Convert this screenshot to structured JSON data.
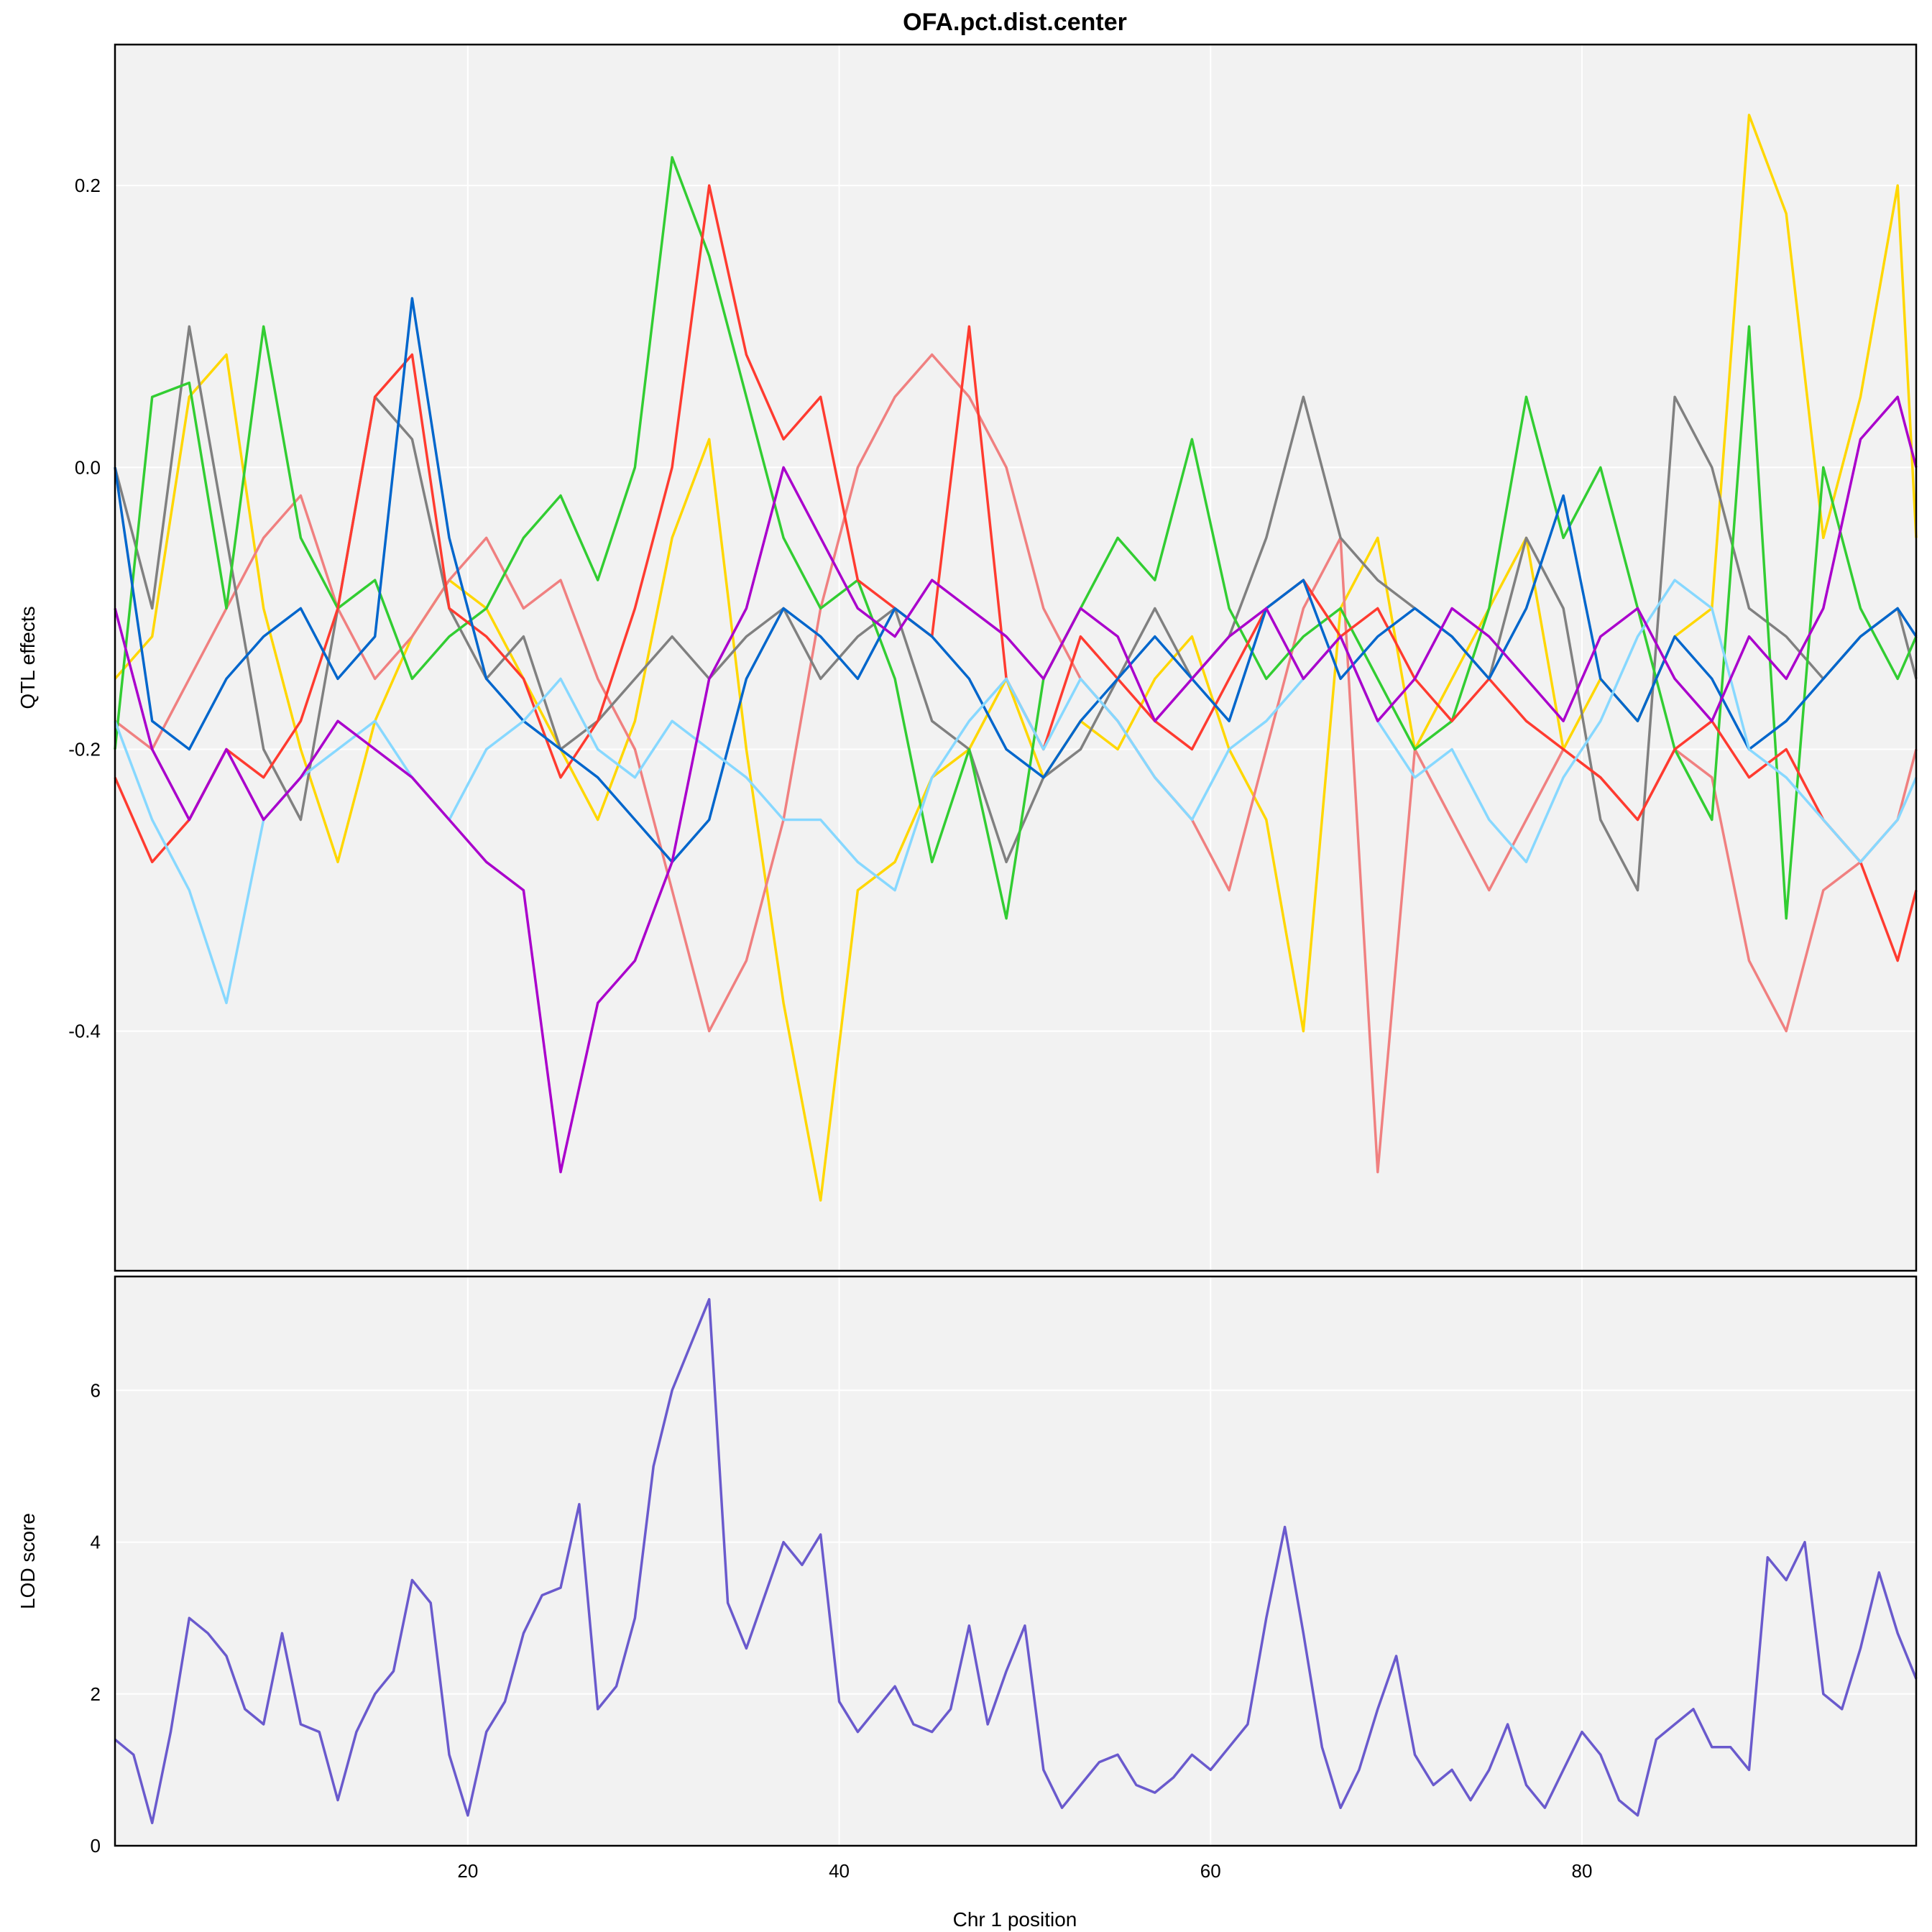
{
  "chart_data": [
    {
      "type": "line",
      "title": "OFA.pct.dist.center",
      "xlabel": "",
      "ylabel": "QTL effects",
      "xlim": [
        1,
        98
      ],
      "ylim": [
        -0.57,
        0.3
      ],
      "xticks": [
        20,
        40,
        60,
        80
      ],
      "yticks": [
        0.2,
        0.0,
        -0.2,
        -0.4
      ],
      "ytick_labels": [
        "0.2",
        "0.0",
        "-0.2",
        "-0.4"
      ],
      "grid": true,
      "background": "#f2f2f2",
      "x": [
        1,
        3,
        5,
        7,
        9,
        11,
        13,
        15,
        17,
        19,
        21,
        23,
        25,
        27,
        29,
        31,
        33,
        35,
        37,
        39,
        41,
        43,
        45,
        47,
        49,
        51,
        53,
        55,
        57,
        59,
        61,
        63,
        65,
        67,
        69,
        71,
        73,
        75,
        77,
        79,
        81,
        83,
        85,
        87,
        89,
        91,
        93,
        95,
        97,
        98
      ],
      "series": [
        {
          "color": "#ffd700",
          "values": [
            -0.15,
            -0.12,
            0.05,
            0.08,
            -0.1,
            -0.2,
            -0.28,
            -0.18,
            -0.12,
            -0.08,
            -0.1,
            -0.15,
            -0.2,
            -0.25,
            -0.18,
            -0.05,
            0.02,
            -0.2,
            -0.38,
            -0.52,
            -0.3,
            -0.28,
            -0.22,
            -0.2,
            -0.15,
            -0.22,
            -0.18,
            -0.2,
            -0.15,
            -0.12,
            -0.2,
            -0.25,
            -0.4,
            -0.1,
            -0.05,
            -0.2,
            -0.15,
            -0.1,
            -0.05,
            -0.2,
            -0.15,
            -0.18,
            -0.12,
            -0.1,
            0.25,
            0.18,
            -0.05,
            0.05,
            0.2,
            -0.05
          ]
        },
        {
          "color": "#f08080",
          "values": [
            -0.18,
            -0.2,
            -0.15,
            -0.1,
            -0.05,
            -0.02,
            -0.1,
            -0.15,
            -0.12,
            -0.08,
            -0.05,
            -0.1,
            -0.08,
            -0.15,
            -0.2,
            -0.3,
            -0.4,
            -0.35,
            -0.25,
            -0.1,
            0.0,
            0.05,
            0.08,
            0.05,
            0.0,
            -0.1,
            -0.15,
            -0.18,
            -0.22,
            -0.25,
            -0.3,
            -0.2,
            -0.1,
            -0.05,
            -0.5,
            -0.2,
            -0.25,
            -0.3,
            -0.25,
            -0.2,
            -0.22,
            -0.25,
            -0.2,
            -0.22,
            -0.35,
            -0.4,
            -0.3,
            -0.28,
            -0.25,
            -0.2
          ]
        },
        {
          "color": "#808080",
          "values": [
            0.0,
            -0.1,
            0.1,
            -0.05,
            -0.2,
            -0.25,
            -0.1,
            0.05,
            0.02,
            -0.1,
            -0.15,
            -0.12,
            -0.2,
            -0.18,
            -0.15,
            -0.12,
            -0.15,
            -0.12,
            -0.1,
            -0.15,
            -0.12,
            -0.1,
            -0.18,
            -0.2,
            -0.28,
            -0.22,
            -0.2,
            -0.15,
            -0.1,
            -0.15,
            -0.12,
            -0.05,
            0.05,
            -0.05,
            -0.08,
            -0.1,
            -0.12,
            -0.15,
            -0.05,
            -0.1,
            -0.25,
            -0.3,
            0.05,
            0.0,
            -0.1,
            -0.12,
            -0.15,
            -0.12,
            -0.1,
            -0.15
          ]
        },
        {
          "color": "#32cd32",
          "values": [
            -0.2,
            0.05,
            0.06,
            -0.1,
            0.1,
            -0.05,
            -0.1,
            -0.08,
            -0.15,
            -0.12,
            -0.1,
            -0.05,
            -0.02,
            -0.08,
            0.0,
            0.22,
            0.15,
            0.05,
            -0.05,
            -0.1,
            -0.08,
            -0.15,
            -0.28,
            -0.2,
            -0.32,
            -0.15,
            -0.1,
            -0.05,
            -0.08,
            0.02,
            -0.1,
            -0.15,
            -0.12,
            -0.1,
            -0.15,
            -0.2,
            -0.18,
            -0.1,
            0.05,
            -0.05,
            0.0,
            -0.1,
            -0.2,
            -0.25,
            0.1,
            -0.32,
            0.0,
            -0.1,
            -0.15,
            -0.12
          ]
        },
        {
          "color": "#ff3b30",
          "values": [
            -0.22,
            -0.28,
            -0.25,
            -0.2,
            -0.22,
            -0.18,
            -0.1,
            0.05,
            0.08,
            -0.1,
            -0.12,
            -0.15,
            -0.22,
            -0.18,
            -0.1,
            0.0,
            0.2,
            0.08,
            0.02,
            0.05,
            -0.08,
            -0.1,
            -0.12,
            0.1,
            -0.15,
            -0.2,
            -0.12,
            -0.15,
            -0.18,
            -0.2,
            -0.15,
            -0.1,
            -0.08,
            -0.12,
            -0.1,
            -0.15,
            -0.18,
            -0.15,
            -0.18,
            -0.2,
            -0.22,
            -0.25,
            -0.2,
            -0.18,
            -0.22,
            -0.2,
            -0.25,
            -0.28,
            -0.35,
            -0.3
          ]
        },
        {
          "color": "#0066cc",
          "values": [
            0.0,
            -0.18,
            -0.2,
            -0.15,
            -0.12,
            -0.1,
            -0.15,
            -0.12,
            0.12,
            -0.05,
            -0.15,
            -0.18,
            -0.2,
            -0.22,
            -0.25,
            -0.28,
            -0.25,
            -0.15,
            -0.1,
            -0.12,
            -0.15,
            -0.1,
            -0.12,
            -0.15,
            -0.2,
            -0.22,
            -0.18,
            -0.15,
            -0.12,
            -0.15,
            -0.18,
            -0.1,
            -0.08,
            -0.15,
            -0.12,
            -0.1,
            -0.12,
            -0.15,
            -0.1,
            -0.02,
            -0.15,
            -0.18,
            -0.12,
            -0.15,
            -0.2,
            -0.18,
            -0.15,
            -0.12,
            -0.1,
            -0.12
          ]
        },
        {
          "color": "#87d8ff",
          "values": [
            -0.18,
            -0.25,
            -0.3,
            -0.38,
            -0.25,
            -0.22,
            -0.2,
            -0.18,
            -0.22,
            -0.25,
            -0.2,
            -0.18,
            -0.15,
            -0.2,
            -0.22,
            -0.18,
            -0.2,
            -0.22,
            -0.25,
            -0.25,
            -0.28,
            -0.3,
            -0.22,
            -0.18,
            -0.15,
            -0.2,
            -0.15,
            -0.18,
            -0.22,
            -0.25,
            -0.2,
            -0.18,
            -0.15,
            -0.12,
            -0.18,
            -0.22,
            -0.2,
            -0.25,
            -0.28,
            -0.22,
            -0.18,
            -0.12,
            -0.08,
            -0.1,
            -0.2,
            -0.22,
            -0.25,
            -0.28,
            -0.25,
            -0.22
          ]
        },
        {
          "color": "#aa00cc",
          "values": [
            -0.1,
            -0.2,
            -0.25,
            -0.2,
            -0.25,
            -0.22,
            -0.18,
            -0.2,
            -0.22,
            -0.25,
            -0.28,
            -0.3,
            -0.5,
            -0.38,
            -0.35,
            -0.28,
            -0.15,
            -0.1,
            0.0,
            -0.05,
            -0.1,
            -0.12,
            -0.08,
            -0.1,
            -0.12,
            -0.15,
            -0.1,
            -0.12,
            -0.18,
            -0.15,
            -0.12,
            -0.1,
            -0.15,
            -0.12,
            -0.18,
            -0.15,
            -0.1,
            -0.12,
            -0.15,
            -0.18,
            -0.12,
            -0.1,
            -0.15,
            -0.18,
            -0.12,
            -0.15,
            -0.1,
            0.02,
            0.05,
            0.0
          ]
        }
      ]
    },
    {
      "type": "line",
      "title": "",
      "xlabel": "Chr 1 position",
      "ylabel": "LOD score",
      "xlim": [
        1,
        98
      ],
      "ylim": [
        0,
        7.5
      ],
      "xticks": [
        20,
        40,
        60,
        80
      ],
      "xtick_labels": [
        "20",
        "40",
        "60",
        "80"
      ],
      "yticks": [
        0,
        2,
        4,
        6
      ],
      "ytick_labels": [
        "0",
        "2",
        "4",
        "6"
      ],
      "grid": true,
      "background": "#f2f2f2",
      "x": [
        1,
        2,
        3,
        4,
        5,
        6,
        7,
        8,
        9,
        10,
        11,
        12,
        13,
        14,
        15,
        16,
        17,
        18,
        19,
        20,
        21,
        22,
        23,
        24,
        25,
        26,
        27,
        28,
        29,
        30,
        31,
        32,
        33,
        34,
        35,
        36,
        37,
        38,
        39,
        40,
        41,
        42,
        43,
        44,
        45,
        46,
        47,
        48,
        49,
        50,
        51,
        52,
        53,
        54,
        55,
        56,
        57,
        58,
        59,
        60,
        61,
        62,
        63,
        64,
        65,
        66,
        67,
        68,
        69,
        70,
        71,
        72,
        73,
        74,
        75,
        76,
        77,
        78,
        79,
        80,
        81,
        82,
        83,
        84,
        85,
        86,
        87,
        88,
        89,
        90,
        91,
        92,
        93,
        94,
        95,
        96,
        97,
        98
      ],
      "series": [
        {
          "color": "#6a5acd",
          "values": [
            1.4,
            1.2,
            0.3,
            1.5,
            3.0,
            2.8,
            2.5,
            1.8,
            1.6,
            2.8,
            1.6,
            1.5,
            0.6,
            1.5,
            2.0,
            2.3,
            3.5,
            3.2,
            1.2,
            0.4,
            1.5,
            1.9,
            2.8,
            3.3,
            3.4,
            4.5,
            1.8,
            2.1,
            3.0,
            5.0,
            6.0,
            6.6,
            7.2,
            3.2,
            2.6,
            3.3,
            4.0,
            3.7,
            4.1,
            1.9,
            1.5,
            1.8,
            2.1,
            1.6,
            1.5,
            1.8,
            2.9,
            1.6,
            2.3,
            2.9,
            1.0,
            0.5,
            0.8,
            1.1,
            1.2,
            0.8,
            0.7,
            0.9,
            1.2,
            1.0,
            1.3,
            1.6,
            3.0,
            4.2,
            2.8,
            1.3,
            0.5,
            1.0,
            1.8,
            2.5,
            1.2,
            0.8,
            1.0,
            0.6,
            1.0,
            1.6,
            0.8,
            0.5,
            1.0,
            1.5,
            1.2,
            0.6,
            0.4,
            1.4,
            1.6,
            1.8,
            1.3,
            1.3,
            1.0,
            3.8,
            3.5,
            4.0,
            2.0,
            1.8,
            2.6,
            3.6,
            2.8,
            2.2
          ]
        }
      ]
    }
  ]
}
